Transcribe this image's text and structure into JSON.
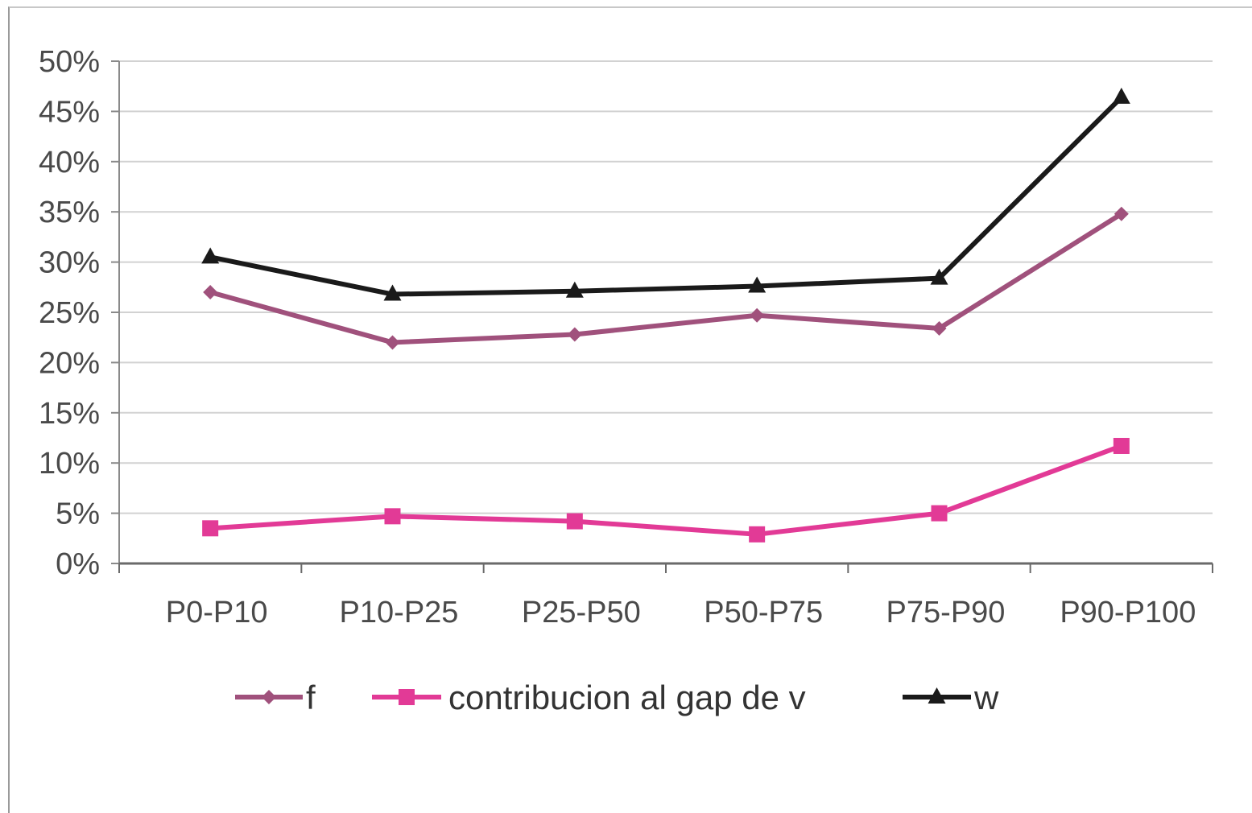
{
  "chart_data": {
    "type": "line",
    "categories": [
      "P0-P10",
      "P10-P25",
      "P25-P50",
      "P50-P75",
      "P75-P90",
      "P90-P100"
    ],
    "series": [
      {
        "name": "f",
        "values": [
          27.0,
          22.0,
          22.8,
          24.7,
          23.4,
          34.8
        ],
        "color": "#a0517c",
        "marker": "diamond"
      },
      {
        "name": "contribucion al gap de v",
        "values": [
          3.5,
          4.7,
          4.2,
          2.9,
          5.0,
          11.7
        ],
        "color": "#e23a96",
        "marker": "square"
      },
      {
        "name": "w",
        "values": [
          30.5,
          26.8,
          27.1,
          27.6,
          28.4,
          46.4
        ],
        "color": "#1a1a1a",
        "marker": "triangle"
      }
    ],
    "y_ticks": [
      "0%",
      "5%",
      "10%",
      "15%",
      "20%",
      "25%",
      "30%",
      "35%",
      "40%",
      "45%",
      "50%"
    ],
    "ylim": [
      0,
      50
    ],
    "grid": true,
    "legend_position": "bottom"
  }
}
